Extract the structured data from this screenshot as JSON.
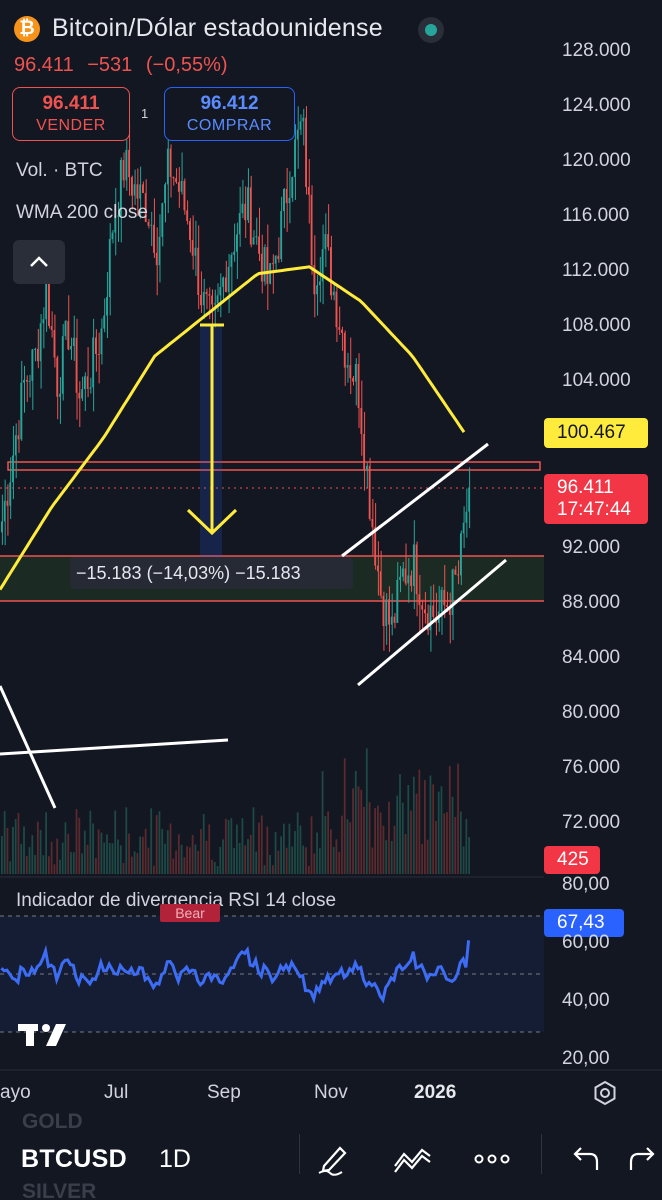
{
  "header": {
    "logo_glyph": "₿",
    "title": "Bitcoin/Dólar estadounidense",
    "price": "96.411",
    "change": "−531",
    "change_pct": "(−0,55%)",
    "status_color": "#26a69a"
  },
  "trade": {
    "sell_price": "96.411",
    "sell_label": "VENDER",
    "buy_price": "96.412",
    "buy_label": "COMPRAR",
    "badge": "1"
  },
  "indicators": {
    "volume": "Vol. · BTC",
    "wma": "WMA 200 close",
    "rsi": "Indicador de divergencia RSI 14 close",
    "bear_label": "Bear"
  },
  "price_axis": [
    "128.000",
    "124.000",
    "120.000",
    "116.000",
    "112.000",
    "108.000",
    "104.000",
    "92.000",
    "88.000",
    "84.000",
    "80.000",
    "76.000",
    "72.000"
  ],
  "tags": {
    "wma_value": "100.467",
    "last_price": "96.411",
    "countdown": "17:47:44",
    "volume_value": "425",
    "rsi_value": "67,43"
  },
  "rsi_axis": [
    "80,00",
    "60,00",
    "40,00",
    "20,00"
  ],
  "measure": {
    "text": "−15.183 (−14,03%) −15.183",
    "amount": -15183,
    "percent": -14.03
  },
  "time_axis": [
    "ayo",
    "Jul",
    "Sep",
    "Nov",
    "2026"
  ],
  "toolbar": {
    "symbol": "BTCUSD",
    "interval": "1D",
    "ghost_above": "GOLD",
    "ghost_below": "SILVER"
  },
  "colors": {
    "up": "#26a69a",
    "down": "#ef5350",
    "wma": "#ffeb3b",
    "rsi": "#2962ff",
    "background": "#131722"
  },
  "chart_data": {
    "type": "candlestick",
    "symbol": "BTCUSD",
    "interval": "1D",
    "y_range": [
      70000,
      130000
    ],
    "x_labels": [
      "ayo",
      "Jul",
      "Sep",
      "Nov",
      "2026"
    ],
    "close_path": [
      [
        "ayo",
        94000
      ],
      [
        "ayo",
        99000
      ],
      [
        "ayo",
        104000
      ],
      [
        "ayo",
        106000
      ],
      [
        "ayo",
        111000
      ],
      [
        "ayo",
        104000
      ],
      [
        "ayo",
        108000
      ],
      [
        "ayo",
        103000
      ],
      [
        "ayo",
        105000
      ],
      [
        "ayo",
        108000
      ],
      [
        "Jul",
        116000
      ],
      [
        "Jul",
        120000
      ],
      [
        "Jul",
        118000
      ],
      [
        "Jul",
        117000
      ],
      [
        "Jul",
        114000
      ],
      [
        "Jul",
        120000
      ],
      [
        "Jul",
        118000
      ],
      [
        "Jul",
        115000
      ],
      [
        "Sep",
        110000
      ],
      [
        "Sep",
        108000
      ],
      [
        "Sep",
        112000
      ],
      [
        "Sep",
        115000
      ],
      [
        "Sep",
        117000
      ],
      [
        "Sep",
        114000
      ],
      [
        "Sep",
        111000
      ],
      [
        "Sep",
        115000
      ],
      [
        "Sep",
        120000
      ],
      [
        "Sep",
        123000
      ],
      [
        "Nov",
        112000
      ],
      [
        "Nov",
        114000
      ],
      [
        "Nov",
        110000
      ],
      [
        "Nov",
        106000
      ],
      [
        "Nov",
        104000
      ],
      [
        "Nov",
        96000
      ],
      [
        "Nov",
        89000
      ],
      [
        "Nov",
        86000
      ],
      [
        "Nov",
        90000
      ],
      [
        "Nov",
        91000
      ],
      [
        "Nov",
        88000
      ],
      [
        "Nov",
        87000
      ],
      [
        "2026",
        88000
      ],
      [
        "2026",
        90000
      ],
      [
        "2026",
        96411
      ]
    ],
    "wma_200": [
      [
        "ayo",
        89000
      ],
      [
        "ayo",
        95000
      ],
      [
        "Jul",
        100000
      ],
      [
        "Sep",
        106000
      ],
      [
        "Sep",
        109000
      ],
      [
        "Sep",
        112000
      ],
      [
        "Nov",
        112500
      ],
      [
        "Nov",
        110000
      ],
      [
        "Nov",
        106000
      ],
      [
        "2026",
        100467
      ]
    ],
    "last_price": 96411,
    "wma_last": 100467,
    "volume_last": 425,
    "rsi_range": [
      20,
      80
    ],
    "rsi_last": 67.43,
    "horizontal_levels": [
      97400,
      91400,
      88200
    ],
    "measure": {
      "change": -15183,
      "percent": -14.03
    },
    "grid": false,
    "legend": "top-left"
  }
}
